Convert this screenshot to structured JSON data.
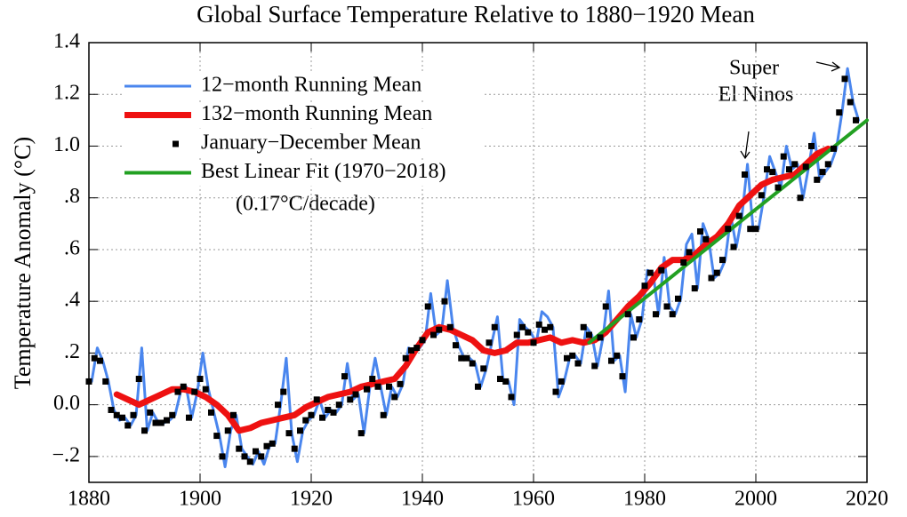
{
  "chart_data": {
    "type": "line",
    "title": "Global Surface Temperature Relative to 1880−1920 Mean",
    "y_label": "Temperature Anomaly (°C)",
    "note": "(0.17°C/decade)",
    "annotation": [
      "Super",
      "El Ninos"
    ],
    "xlim": [
      1880,
      2020
    ],
    "xticks": [
      1880,
      1900,
      1920,
      1940,
      1960,
      1980,
      2000,
      2020
    ],
    "ylim": [
      -0.3,
      1.4
    ],
    "yticks": [
      {
        "value": -0.2,
        "label": "−.2"
      },
      {
        "value": 0,
        "label": "0.0"
      },
      {
        "value": 0.2,
        "label": ".2"
      },
      {
        "value": 0.4,
        "label": ".4"
      },
      {
        "value": 0.6,
        "label": ".6"
      },
      {
        "value": 0.8,
        "label": ".8"
      },
      {
        "value": 1.0,
        "label": "1.0"
      },
      1.2,
      1.4
    ],
    "grid": true,
    "series": [
      {
        "name": "12−month Running Mean",
        "color": "#4a86ee",
        "style": "line",
        "width": 3,
        "x": [
          1880.5,
          1881.5,
          1882.5,
          1883.5,
          1884.5,
          1885.5,
          1886.5,
          1887.5,
          1888.5,
          1889.5,
          1890.5,
          1891.5,
          1892.5,
          1893.5,
          1894.5,
          1895.5,
          1896.5,
          1897.5,
          1898.5,
          1899.5,
          1900.5,
          1901.5,
          1902.5,
          1903.5,
          1904.5,
          1905.5,
          1906.5,
          1907.5,
          1908.5,
          1909.5,
          1910.5,
          1911.5,
          1912.5,
          1913.5,
          1914.5,
          1915.5,
          1916.5,
          1917.5,
          1918.5,
          1919.5,
          1920.5,
          1921.5,
          1922.5,
          1923.5,
          1924.5,
          1925.5,
          1926.5,
          1927.5,
          1928.5,
          1929.5,
          1930.5,
          1931.5,
          1932.5,
          1933.5,
          1934.5,
          1935.5,
          1936.5,
          1937.5,
          1938.5,
          1939.5,
          1940.5,
          1941.5,
          1942.5,
          1943.5,
          1944.5,
          1945.5,
          1946.5,
          1947.5,
          1948.5,
          1949.5,
          1950.5,
          1951.5,
          1952.5,
          1953.5,
          1954.5,
          1955.5,
          1956.5,
          1957.5,
          1958.5,
          1959.5,
          1960.5,
          1961.5,
          1962.5,
          1963.5,
          1964.5,
          1965.5,
          1966.5,
          1967.5,
          1968.5,
          1969.5,
          1970.5,
          1971.5,
          1972.5,
          1973.5,
          1974.5,
          1975.5,
          1976.5,
          1977.5,
          1978.5,
          1979.5,
          1980.5,
          1981.5,
          1982.5,
          1983.5,
          1984.5,
          1985.5,
          1986.5,
          1987.5,
          1988.5,
          1989.5,
          1990.5,
          1991.5,
          1992.5,
          1993.5,
          1994.5,
          1995.5,
          1996.5,
          1997.5,
          1998.5,
          1999.5,
          2000.5,
          2001.5,
          2002.5,
          2003.5,
          2004.5,
          2005.5,
          2006.5,
          2007.5,
          2008.5,
          2009.5,
          2010.5,
          2011.5,
          2012.5,
          2013.5,
          2014.5,
          2015.5,
          2016.5,
          2017.5,
          2018.5
        ],
        "values": [
          0.09,
          0.22,
          0.17,
          0.09,
          -0.02,
          -0.06,
          -0.05,
          -0.08,
          -0.04,
          0.22,
          -0.1,
          -0.03,
          -0.07,
          -0.07,
          -0.06,
          -0.04,
          0.05,
          0.07,
          -0.05,
          0.05,
          0.2,
          0.06,
          -0.03,
          -0.12,
          -0.24,
          -0.1,
          -0.04,
          -0.17,
          -0.2,
          -0.23,
          -0.18,
          -0.23,
          -0.16,
          -0.15,
          0.0,
          0.18,
          -0.11,
          -0.22,
          -0.1,
          -0.06,
          -0.04,
          0.02,
          -0.05,
          -0.02,
          -0.03,
          0.0,
          0.16,
          0.02,
          0.04,
          -0.11,
          0.06,
          0.18,
          0.07,
          -0.04,
          0.07,
          0.03,
          0.08,
          0.22,
          0.21,
          0.22,
          0.25,
          0.43,
          0.27,
          0.29,
          0.48,
          0.3,
          0.23,
          0.18,
          0.18,
          0.16,
          0.07,
          0.14,
          0.24,
          0.34,
          0.1,
          0.09,
          0.0,
          0.33,
          0.3,
          0.28,
          0.24,
          0.36,
          0.34,
          0.3,
          0.03,
          0.09,
          0.18,
          0.19,
          0.16,
          0.3,
          0.27,
          0.15,
          0.26,
          0.44,
          0.17,
          0.19,
          0.05,
          0.35,
          0.26,
          0.33,
          0.52,
          0.51,
          0.35,
          0.57,
          0.38,
          0.35,
          0.41,
          0.62,
          0.66,
          0.45,
          0.7,
          0.64,
          0.49,
          0.51,
          0.56,
          0.73,
          0.61,
          0.73,
          0.93,
          0.68,
          0.68,
          0.81,
          0.96,
          0.9,
          0.84,
          1.0,
          0.91,
          0.93,
          0.8,
          0.92,
          1.05,
          0.87,
          0.9,
          0.93,
          0.99,
          1.13,
          1.3,
          1.17,
          1.1
        ]
      },
      {
        "name": "132−month Running Mean",
        "color": "#ee1111",
        "style": "line",
        "width": 7,
        "x": [
          1885,
          1887,
          1889,
          1891,
          1893,
          1895,
          1897,
          1899,
          1901,
          1903,
          1905,
          1907,
          1909,
          1911,
          1913,
          1915,
          1917,
          1919,
          1921,
          1923,
          1925,
          1927,
          1929,
          1931,
          1933,
          1935,
          1937,
          1939,
          1941,
          1943,
          1945,
          1947,
          1949,
          1951,
          1953,
          1955,
          1957,
          1959,
          1961,
          1963,
          1965,
          1967,
          1969,
          1971,
          1973,
          1975,
          1977,
          1979,
          1981,
          1983,
          1985,
          1987,
          1989,
          1991,
          1993,
          1995,
          1997,
          1999,
          2001,
          2003,
          2005,
          2007,
          2009,
          2011,
          2013
        ],
        "values": [
          0.04,
          0.02,
          0.0,
          0.02,
          0.04,
          0.06,
          0.06,
          0.05,
          0.03,
          0.0,
          -0.04,
          -0.1,
          -0.09,
          -0.07,
          -0.06,
          -0.05,
          -0.04,
          -0.01,
          0.01,
          0.03,
          0.04,
          0.05,
          0.07,
          0.08,
          0.09,
          0.1,
          0.15,
          0.22,
          0.28,
          0.3,
          0.29,
          0.27,
          0.25,
          0.21,
          0.2,
          0.21,
          0.24,
          0.24,
          0.25,
          0.26,
          0.24,
          0.25,
          0.24,
          0.25,
          0.28,
          0.33,
          0.38,
          0.42,
          0.47,
          0.53,
          0.56,
          0.56,
          0.58,
          0.62,
          0.65,
          0.7,
          0.77,
          0.81,
          0.85,
          0.87,
          0.88,
          0.89,
          0.93,
          0.97,
          0.99
        ]
      },
      {
        "name": "January−December Mean",
        "color": "#000000",
        "style": "points",
        "width": 7,
        "x": [
          1880,
          1881,
          1882,
          1883,
          1884,
          1885,
          1886,
          1887,
          1888,
          1889,
          1890,
          1891,
          1892,
          1893,
          1894,
          1895,
          1896,
          1897,
          1898,
          1899,
          1900,
          1901,
          1902,
          1903,
          1904,
          1905,
          1906,
          1907,
          1908,
          1909,
          1910,
          1911,
          1912,
          1913,
          1914,
          1915,
          1916,
          1917,
          1918,
          1919,
          1920,
          1921,
          1922,
          1923,
          1924,
          1925,
          1926,
          1927,
          1928,
          1929,
          1930,
          1931,
          1932,
          1933,
          1934,
          1935,
          1936,
          1937,
          1938,
          1939,
          1940,
          1941,
          1942,
          1943,
          1944,
          1945,
          1946,
          1947,
          1948,
          1949,
          1950,
          1951,
          1952,
          1953,
          1954,
          1955,
          1956,
          1957,
          1958,
          1959,
          1960,
          1961,
          1962,
          1963,
          1964,
          1965,
          1966,
          1967,
          1968,
          1969,
          1970,
          1971,
          1972,
          1973,
          1974,
          1975,
          1976,
          1977,
          1978,
          1979,
          1980,
          1981,
          1982,
          1983,
          1984,
          1985,
          1986,
          1987,
          1988,
          1989,
          1990,
          1991,
          1992,
          1993,
          1994,
          1995,
          1996,
          1997,
          1998,
          1999,
          2000,
          2001,
          2002,
          2003,
          2004,
          2005,
          2006,
          2007,
          2008,
          2009,
          2010,
          2011,
          2012,
          2013,
          2014,
          2015,
          2016,
          2017,
          2018
        ],
        "values": [
          0.09,
          0.18,
          0.17,
          0.09,
          -0.02,
          -0.04,
          -0.05,
          -0.08,
          -0.04,
          0.1,
          -0.1,
          -0.03,
          -0.07,
          -0.07,
          -0.06,
          -0.04,
          0.05,
          0.07,
          -0.05,
          0.05,
          0.1,
          0.06,
          -0.03,
          -0.12,
          -0.2,
          -0.1,
          -0.04,
          -0.17,
          -0.2,
          -0.22,
          -0.18,
          -0.2,
          -0.16,
          -0.15,
          0.0,
          0.05,
          -0.11,
          -0.17,
          -0.1,
          -0.06,
          -0.04,
          0.02,
          -0.05,
          -0.02,
          -0.03,
          0.0,
          0.11,
          0.02,
          0.04,
          -0.11,
          0.06,
          0.1,
          0.07,
          -0.04,
          0.07,
          0.03,
          0.08,
          0.18,
          0.21,
          0.22,
          0.25,
          0.38,
          0.27,
          0.29,
          0.4,
          0.3,
          0.23,
          0.18,
          0.18,
          0.16,
          0.07,
          0.14,
          0.24,
          0.3,
          0.1,
          0.09,
          0.03,
          0.27,
          0.3,
          0.28,
          0.24,
          0.31,
          0.29,
          0.3,
          0.05,
          0.09,
          0.18,
          0.19,
          0.16,
          0.3,
          0.27,
          0.15,
          0.26,
          0.38,
          0.17,
          0.19,
          0.11,
          0.35,
          0.26,
          0.33,
          0.46,
          0.51,
          0.35,
          0.52,
          0.38,
          0.35,
          0.41,
          0.55,
          0.59,
          0.45,
          0.67,
          0.64,
          0.49,
          0.51,
          0.56,
          0.68,
          0.61,
          0.73,
          0.89,
          0.68,
          0.68,
          0.81,
          0.91,
          0.9,
          0.84,
          0.96,
          0.91,
          0.93,
          0.8,
          0.92,
          1.0,
          0.87,
          0.9,
          0.93,
          0.99,
          1.13,
          1.26,
          1.17,
          1.1
        ]
      },
      {
        "name": "Best Linear Fit (1970−2018)",
        "color": "#22a022",
        "style": "line",
        "width": 4,
        "x": [
          1970,
          2020
        ],
        "values": [
          0.24,
          1.1
        ]
      }
    ]
  }
}
